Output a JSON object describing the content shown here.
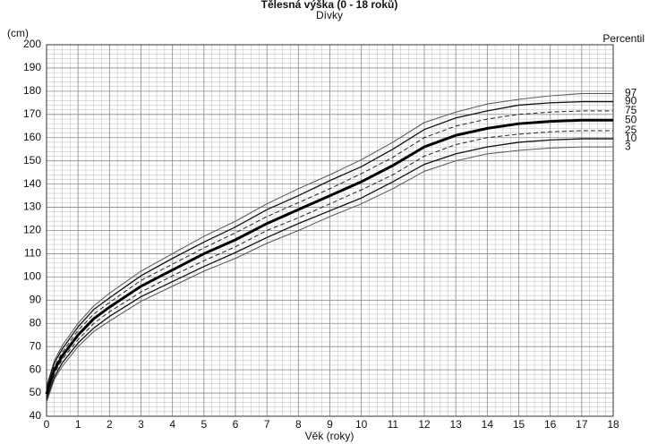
{
  "chart_data": {
    "type": "line",
    "title": "Tělesná výška (0 - 18 roků)",
    "subtitle": "Dívky",
    "y_label": "(cm)",
    "legend_title": "Percentil",
    "x_label": "Věk (roky)",
    "x": [
      0,
      0.25,
      0.5,
      1,
      1.5,
      2,
      3,
      4,
      5,
      6,
      7,
      8,
      9,
      10,
      11,
      12,
      13,
      14,
      15,
      16,
      17,
      18
    ],
    "xlim": [
      0,
      18
    ],
    "xticks": [
      0,
      1,
      2,
      3,
      4,
      5,
      6,
      7,
      8,
      9,
      10,
      11,
      12,
      13,
      14,
      15,
      16,
      17,
      18
    ],
    "ylim": [
      40,
      200
    ],
    "yticks": [
      40,
      50,
      60,
      70,
      80,
      90,
      100,
      110,
      120,
      130,
      140,
      150,
      160,
      170,
      180,
      190,
      200
    ],
    "grid": true,
    "series": [
      {
        "name": "97",
        "color": "#555555",
        "width": 1,
        "dash": false,
        "values": [
          53,
          64,
          70.5,
          80,
          87.5,
          93,
          102.5,
          110,
          117.5,
          124,
          131.5,
          138,
          144,
          150.5,
          158,
          166.5,
          171,
          174.5,
          176.5,
          178,
          179,
          179
        ]
      },
      {
        "name": "90",
        "color": "#111111",
        "width": 1.3,
        "dash": false,
        "values": [
          52,
          63,
          69,
          78.5,
          86,
          91,
          100.5,
          108,
          115,
          121.5,
          129,
          135,
          141.5,
          147.5,
          155,
          163.5,
          168.5,
          171.5,
          174,
          175,
          175.5,
          175.5
        ]
      },
      {
        "name": "75",
        "color": "#222222",
        "width": 1,
        "dash": true,
        "values": [
          50.5,
          61.5,
          67.5,
          77,
          84,
          89,
          98.5,
          105.5,
          112.5,
          119,
          126,
          132,
          138,
          144.5,
          151.5,
          160,
          165,
          168,
          170,
          171,
          171.5,
          171.5
        ]
      },
      {
        "name": "50",
        "color": "#000000",
        "width": 3,
        "dash": false,
        "values": [
          49.5,
          60,
          66,
          75,
          82,
          87,
          96,
          103,
          110,
          116,
          123,
          129,
          135,
          141,
          148,
          156,
          161,
          164,
          166,
          167,
          167.5,
          167.5
        ]
      },
      {
        "name": "25",
        "color": "#222222",
        "width": 1,
        "dash": true,
        "values": [
          48,
          58.5,
          64.5,
          73,
          80,
          85,
          93.5,
          100.5,
          107,
          113,
          120,
          125.5,
          131.5,
          137.5,
          144,
          152,
          157,
          160,
          161.5,
          162.5,
          163,
          163
        ]
      },
      {
        "name": "10",
        "color": "#111111",
        "width": 1.3,
        "dash": false,
        "values": [
          47,
          57,
          63,
          71.5,
          78,
          83,
          91.5,
          98,
          104.5,
          110.5,
          117,
          123,
          128.5,
          134,
          141,
          148.5,
          153,
          156,
          158,
          159,
          159.5,
          159.5
        ]
      },
      {
        "name": "3",
        "color": "#555555",
        "width": 1,
        "dash": false,
        "values": [
          46,
          56,
          61.5,
          70,
          76.5,
          81,
          89.5,
          96,
          102.5,
          108,
          114.5,
          120,
          126,
          131.5,
          138,
          145.5,
          150,
          153,
          154.5,
          155.5,
          156,
          156
        ]
      }
    ]
  }
}
